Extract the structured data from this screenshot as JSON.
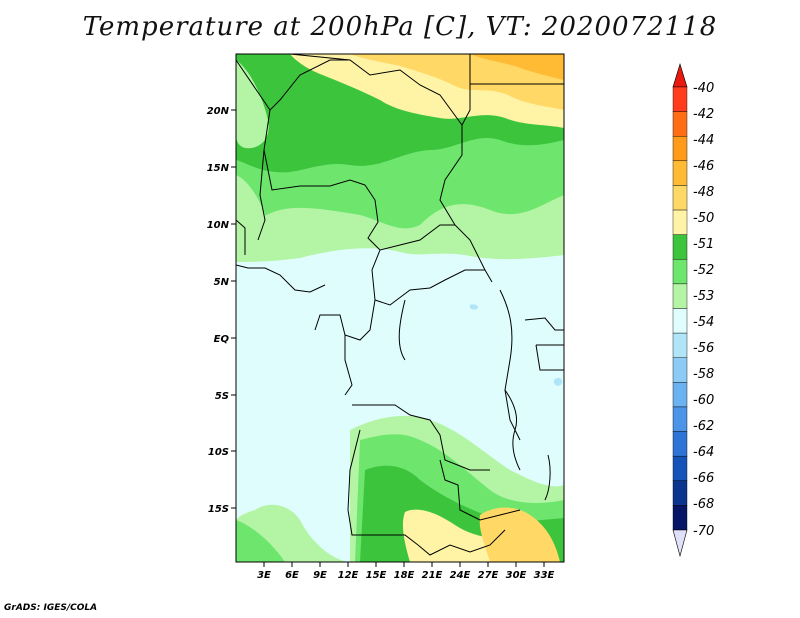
{
  "title": "Temperature at 200hPa [C], VT: 2020072118",
  "credit": "GrADS: IGES/COLA",
  "axes": {
    "x_ticks": [
      "3E",
      "6E",
      "9E",
      "12E",
      "15E",
      "18E",
      "21E",
      "24E",
      "27E",
      "30E",
      "33E"
    ],
    "y_ticks": [
      "20N",
      "15N",
      "10N",
      "5N",
      "EQ",
      "5S",
      "10S",
      "15S"
    ]
  },
  "colorbar": {
    "labels": [
      "-40",
      "-42",
      "-44",
      "-46",
      "-48",
      "-50",
      "-51",
      "-52",
      "-53",
      "-54",
      "-56",
      "-58",
      "-60",
      "-62",
      "-64",
      "-66",
      "-68",
      "-70"
    ],
    "colors": [
      "#ff3c1e",
      "#ff6e14",
      "#ff9a1a",
      "#ffbb33",
      "#ffd866",
      "#fff4a6",
      "#3cc43c",
      "#6ee66e",
      "#b4f5a5",
      "#e0fdfd",
      "#b0e4f7",
      "#8ccbf5",
      "#6bb2f0",
      "#4b94e8",
      "#2e73d6",
      "#1653b8",
      "#0a3690",
      "#061666"
    ],
    "end_colors": {
      "top": "#e81a10",
      "bottom": "#e0e0f8"
    }
  },
  "chart_data": {
    "type": "heatmap",
    "title": "Temperature at 200hPa [C], VT: 2020072118",
    "variable": "Temperature at 200hPa",
    "units": "C",
    "valid_time": "2020072118",
    "lon_range": [
      0,
      35
    ],
    "lat_range": [
      -20,
      25
    ],
    "levels": [
      -70,
      -68,
      -66,
      -64,
      -62,
      -60,
      -58,
      -56,
      -54,
      -53,
      -52,
      -51,
      -50,
      -48,
      -46,
      -44,
      -42,
      -40
    ],
    "x_tick_labels": [
      "3E",
      "6E",
      "9E",
      "12E",
      "15E",
      "18E",
      "21E",
      "24E",
      "27E",
      "30E",
      "33E"
    ],
    "y_tick_labels": [
      "20N",
      "15N",
      "10N",
      "5N",
      "EQ",
      "5S",
      "10S",
      "15S"
    ]
  }
}
